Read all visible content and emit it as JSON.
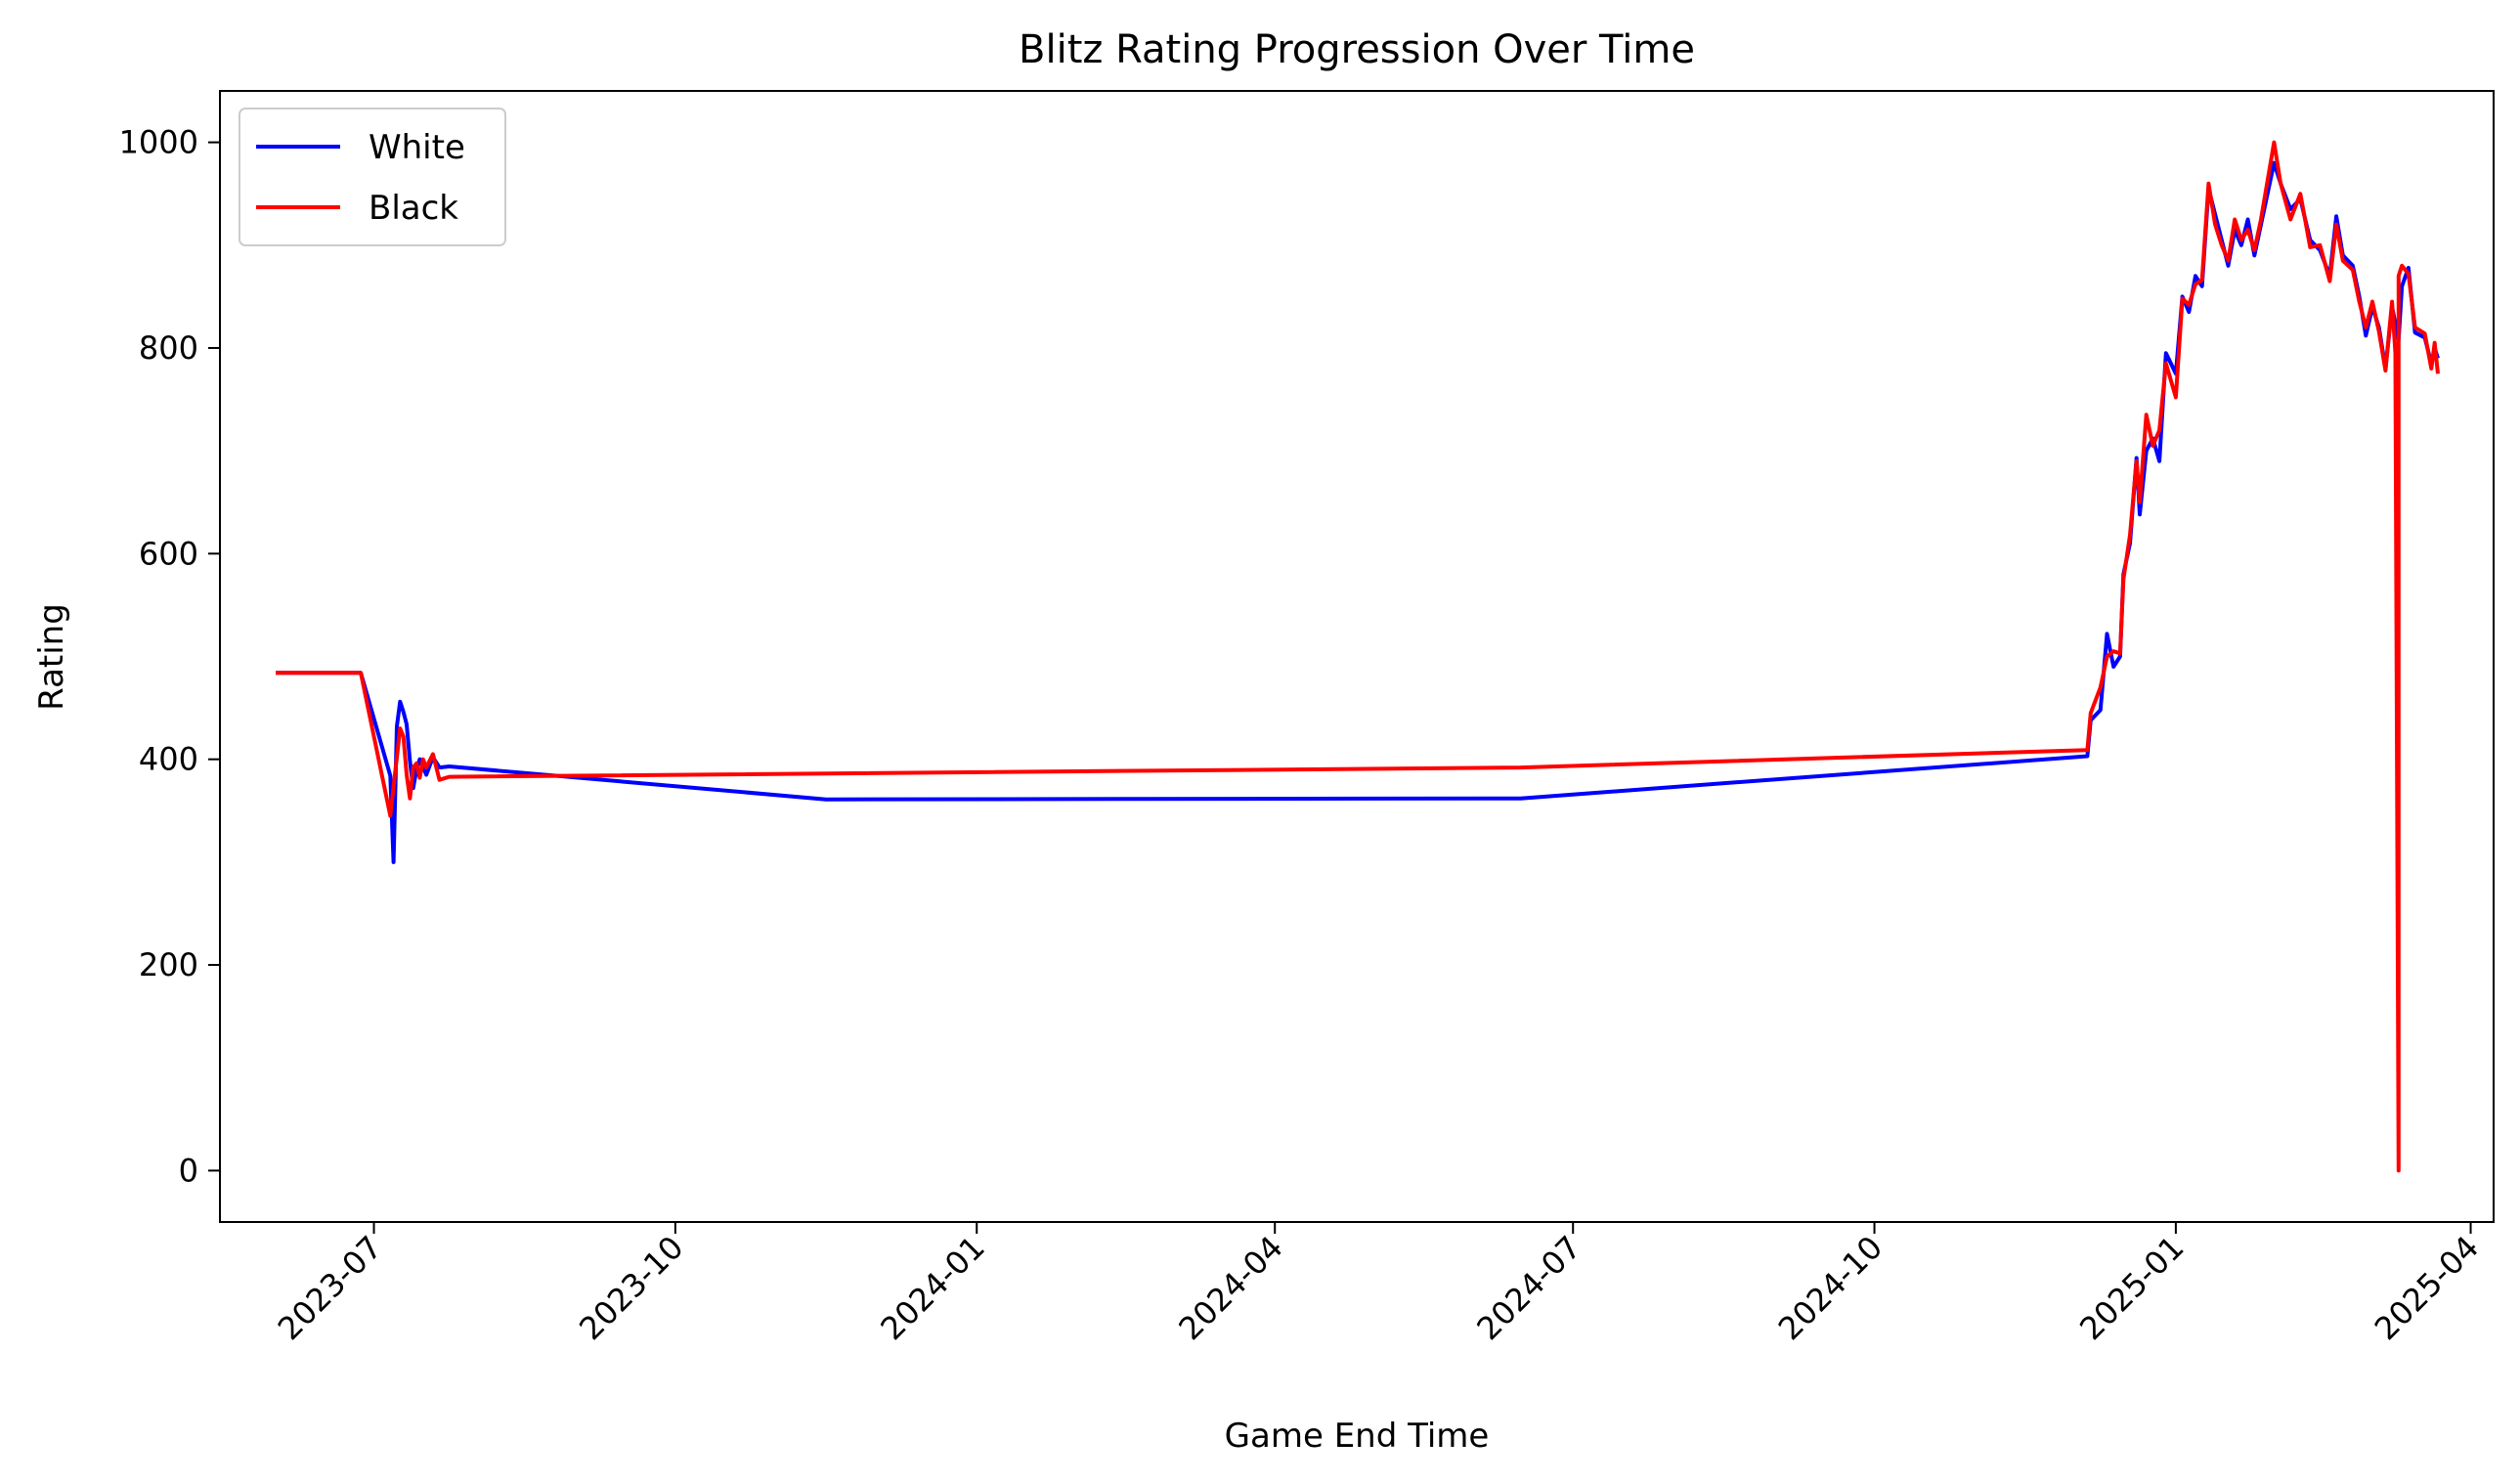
{
  "chart_data": {
    "type": "line",
    "title": "Blitz Rating Progression Over Time",
    "xlabel": "Game End Time",
    "ylabel": "Rating",
    "xlim": [
      "2023-05-15",
      "2025-04-08"
    ],
    "ylim": [
      -50,
      1050
    ],
    "x_ticks": [
      "2023-07-01",
      "2023-10-01",
      "2024-01-01",
      "2024-04-01",
      "2024-07-01",
      "2024-10-01",
      "2025-01-01",
      "2025-04-01"
    ],
    "x_tick_labels": [
      "2023-07",
      "2023-10",
      "2024-01",
      "2024-04",
      "2024-07",
      "2024-10",
      "2025-01",
      "2025-04"
    ],
    "y_ticks": [
      0,
      200,
      400,
      600,
      800,
      1000
    ],
    "legend_position": "top-left",
    "grid": false,
    "series": [
      {
        "name": "White",
        "color": "#0000ff",
        "points": [
          [
            "2023-06-01",
            484
          ],
          [
            "2023-06-27",
            484
          ],
          [
            "2023-07-06",
            384
          ],
          [
            "2023-07-07",
            300
          ],
          [
            "2023-07-08",
            432
          ],
          [
            "2023-07-09",
            456
          ],
          [
            "2023-07-10",
            446
          ],
          [
            "2023-07-11",
            434
          ],
          [
            "2023-07-12",
            398
          ],
          [
            "2023-07-13",
            372
          ],
          [
            "2023-07-14",
            390
          ],
          [
            "2023-07-15",
            400
          ],
          [
            "2023-07-17",
            385
          ],
          [
            "2023-07-19",
            402
          ],
          [
            "2023-07-21",
            392
          ],
          [
            "2023-07-24",
            393
          ],
          [
            "2023-11-16",
            361
          ],
          [
            "2024-06-15",
            362
          ],
          [
            "2024-12-05",
            403
          ],
          [
            "2024-12-06",
            438
          ],
          [
            "2024-12-09",
            448
          ],
          [
            "2024-12-11",
            522
          ],
          [
            "2024-12-13",
            490
          ],
          [
            "2024-12-15",
            500
          ],
          [
            "2024-12-16",
            580
          ],
          [
            "2024-12-18",
            610
          ],
          [
            "2024-12-20",
            693
          ],
          [
            "2024-12-21",
            638
          ],
          [
            "2024-12-23",
            700
          ],
          [
            "2024-12-25",
            712
          ],
          [
            "2024-12-27",
            690
          ],
          [
            "2024-12-29",
            795
          ],
          [
            "2025-01-01",
            775
          ],
          [
            "2025-01-03",
            850
          ],
          [
            "2025-01-05",
            835
          ],
          [
            "2025-01-07",
            870
          ],
          [
            "2025-01-09",
            860
          ],
          [
            "2025-01-11",
            955
          ],
          [
            "2025-01-13",
            930
          ],
          [
            "2025-01-15",
            905
          ],
          [
            "2025-01-17",
            880
          ],
          [
            "2025-01-19",
            915
          ],
          [
            "2025-01-21",
            900
          ],
          [
            "2025-01-23",
            925
          ],
          [
            "2025-01-25",
            890
          ],
          [
            "2025-01-27",
            920
          ],
          [
            "2025-01-31",
            980
          ],
          [
            "2025-02-02",
            960
          ],
          [
            "2025-02-05",
            935
          ],
          [
            "2025-02-08",
            945
          ],
          [
            "2025-02-11",
            905
          ],
          [
            "2025-02-14",
            895
          ],
          [
            "2025-02-17",
            870
          ],
          [
            "2025-02-19",
            928
          ],
          [
            "2025-02-21",
            890
          ],
          [
            "2025-02-24",
            880
          ],
          [
            "2025-02-26",
            850
          ],
          [
            "2025-02-28",
            812
          ],
          [
            "2025-03-02",
            840
          ],
          [
            "2025-03-04",
            820
          ],
          [
            "2025-03-06",
            780
          ],
          [
            "2025-03-08",
            840
          ],
          [
            "2025-03-10",
            808
          ],
          [
            "2025-03-11",
            860
          ],
          [
            "2025-03-13",
            878
          ],
          [
            "2025-03-15",
            815
          ],
          [
            "2025-03-18",
            810
          ],
          [
            "2025-03-20",
            785
          ],
          [
            "2025-03-21",
            800
          ],
          [
            "2025-03-22",
            790
          ]
        ]
      },
      {
        "name": "Black",
        "color": "#ff0000",
        "points": [
          [
            "2023-06-01",
            484
          ],
          [
            "2023-06-27",
            484
          ],
          [
            "2023-07-06",
            345
          ],
          [
            "2023-07-08",
            402
          ],
          [
            "2023-07-09",
            430
          ],
          [
            "2023-07-10",
            422
          ],
          [
            "2023-07-11",
            385
          ],
          [
            "2023-07-12",
            362
          ],
          [
            "2023-07-13",
            392
          ],
          [
            "2023-07-14",
            396
          ],
          [
            "2023-07-15",
            382
          ],
          [
            "2023-07-16",
            400
          ],
          [
            "2023-07-17",
            392
          ],
          [
            "2023-07-19",
            405
          ],
          [
            "2023-07-21",
            380
          ],
          [
            "2023-07-24",
            383
          ],
          [
            "2024-06-15",
            392
          ],
          [
            "2024-12-05",
            409
          ],
          [
            "2024-12-06",
            445
          ],
          [
            "2024-12-09",
            470
          ],
          [
            "2024-12-11",
            500
          ],
          [
            "2024-12-13",
            505
          ],
          [
            "2024-12-15",
            503
          ],
          [
            "2024-12-16",
            575
          ],
          [
            "2024-12-18",
            618
          ],
          [
            "2024-12-20",
            690
          ],
          [
            "2024-12-21",
            650
          ],
          [
            "2024-12-23",
            735
          ],
          [
            "2024-12-25",
            705
          ],
          [
            "2024-12-27",
            720
          ],
          [
            "2024-12-29",
            785
          ],
          [
            "2025-01-01",
            752
          ],
          [
            "2025-01-03",
            848
          ],
          [
            "2025-01-05",
            842
          ],
          [
            "2025-01-07",
            862
          ],
          [
            "2025-01-09",
            866
          ],
          [
            "2025-01-11",
            960
          ],
          [
            "2025-01-13",
            920
          ],
          [
            "2025-01-15",
            900
          ],
          [
            "2025-01-17",
            885
          ],
          [
            "2025-01-19",
            925
          ],
          [
            "2025-01-21",
            905
          ],
          [
            "2025-01-23",
            915
          ],
          [
            "2025-01-25",
            895
          ],
          [
            "2025-01-27",
            925
          ],
          [
            "2025-01-31",
            1000
          ],
          [
            "2025-02-02",
            960
          ],
          [
            "2025-02-05",
            925
          ],
          [
            "2025-02-08",
            950
          ],
          [
            "2025-02-11",
            898
          ],
          [
            "2025-02-14",
            900
          ],
          [
            "2025-02-17",
            865
          ],
          [
            "2025-02-19",
            920
          ],
          [
            "2025-02-21",
            885
          ],
          [
            "2025-02-24",
            876
          ],
          [
            "2025-02-26",
            845
          ],
          [
            "2025-02-28",
            820
          ],
          [
            "2025-03-02",
            845
          ],
          [
            "2025-03-04",
            816
          ],
          [
            "2025-03-06",
            778
          ],
          [
            "2025-03-08",
            845
          ],
          [
            "2025-03-09",
            795
          ],
          [
            "2025-03-10",
            0
          ],
          [
            "2025-03-10",
            870
          ],
          [
            "2025-03-11",
            880
          ],
          [
            "2025-03-13",
            872
          ],
          [
            "2025-03-15",
            820
          ],
          [
            "2025-03-18",
            814
          ],
          [
            "2025-03-20",
            780
          ],
          [
            "2025-03-21",
            805
          ],
          [
            "2025-03-22",
            775
          ]
        ]
      }
    ]
  }
}
